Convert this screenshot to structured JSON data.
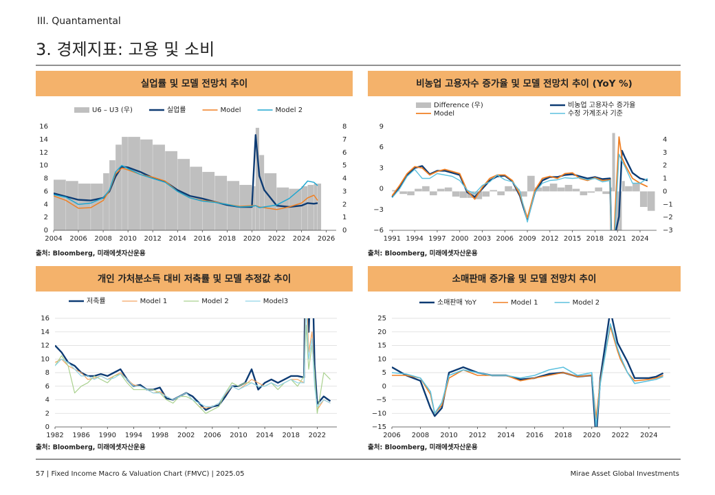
{
  "header": {
    "section": "III. Quantamental",
    "title": "3. 경제지표: 고용 및 소비"
  },
  "footer": {
    "left": "57 | Fixed Income Macro & Valuation Chart (FMVC) | 2025.05",
    "right": "Mirae Asset Global Investments"
  },
  "chart_data": [
    {
      "type": "line",
      "title": "실업률 및 모델 전망치 추이",
      "source": "출처: Bloomberg, 미래에셋자산운용",
      "x": [
        2004,
        2005,
        2006,
        2007,
        2008,
        2008.5,
        2009,
        2009.5,
        2010,
        2011,
        2012,
        2013,
        2014,
        2015,
        2016,
        2017,
        2018,
        2019,
        2020,
        2020.3,
        2020.6,
        2021,
        2022,
        2023,
        2024,
        2024.5,
        2025,
        2025.3
      ],
      "xlim": [
        2004,
        2026.8
      ],
      "xticks": [
        2004,
        2006,
        2008,
        2010,
        2012,
        2014,
        2016,
        2018,
        2020,
        2022,
        2024,
        2026
      ],
      "ylim": [
        0,
        16
      ],
      "yticks": [
        0,
        2,
        4,
        6,
        8,
        10,
        12,
        14,
        16
      ],
      "y2lim": [
        0,
        8
      ],
      "y2ticks": [
        0,
        1,
        2,
        3,
        4,
        5,
        6,
        7,
        8
      ],
      "grid": false,
      "series": [
        {
          "name": "U6 – U3 (우)",
          "type": "bar",
          "axis": "y2",
          "color": "#bfbfbf",
          "values": [
            3.9,
            3.8,
            3.6,
            3.6,
            4.4,
            5.4,
            6.6,
            7.2,
            7.2,
            7.0,
            6.6,
            6.1,
            5.5,
            4.9,
            4.5,
            4.2,
            3.8,
            3.5,
            3.4,
            7.9,
            5.8,
            4.4,
            3.3,
            3.2,
            3.4,
            3.5,
            3.6,
            3.6
          ]
        },
        {
          "name": "실업률",
          "type": "line",
          "color": "#0d3b73",
          "line_width": 2.4,
          "values": [
            5.7,
            5.2,
            4.7,
            4.6,
            5.0,
            6.0,
            8.3,
            9.8,
            9.7,
            9.0,
            8.1,
            7.5,
            6.2,
            5.3,
            4.9,
            4.4,
            3.9,
            3.6,
            3.6,
            14.7,
            8.4,
            6.2,
            3.8,
            3.6,
            3.8,
            4.2,
            4.1,
            4.2
          ]
        },
        {
          "name": "Model",
          "type": "line",
          "color": "#f07f22",
          "line_width": 1.5,
          "values": [
            5.3,
            4.6,
            3.4,
            3.5,
            4.6,
            6.1,
            8.7,
            9.6,
            9.3,
            8.6,
            8.2,
            7.6,
            6.0,
            5.0,
            4.6,
            4.4,
            4.0,
            3.7,
            3.8,
            3.8,
            3.6,
            3.5,
            3.2,
            3.6,
            4.2,
            5.0,
            5.4,
            4.6
          ]
        },
        {
          "name": "Model 2",
          "type": "line",
          "color": "#1ea6d0",
          "line_width": 1.5,
          "values": [
            5.5,
            5.1,
            4.0,
            4.2,
            5.0,
            6.2,
            9.0,
            10.0,
            9.5,
            8.6,
            8.0,
            7.4,
            6.0,
            5.0,
            4.5,
            4.3,
            4.0,
            3.6,
            3.7,
            3.8,
            3.5,
            3.6,
            3.9,
            4.9,
            6.5,
            7.6,
            7.4,
            6.9
          ]
        }
      ]
    },
    {
      "type": "line",
      "title": "비농업 고용자수 증가율 및 모델 전망치 추이 (YoY %)",
      "source": "출처: Bloomberg, 미래에셋자산운용",
      "x": [
        1991,
        1992,
        1993,
        1994,
        1995,
        1996,
        1997,
        1998,
        1999,
        2000,
        2001,
        2002,
        2003,
        2004,
        2005,
        2006,
        2007,
        2008,
        2009,
        2010,
        2011,
        2012,
        2013,
        2014,
        2015,
        2016,
        2017,
        2018,
        2019,
        2020,
        2020.3,
        2020.7,
        2021.2,
        2021.6,
        2022,
        2023,
        2024,
        2025
      ],
      "xlim": [
        1990.6,
        2026.2
      ],
      "xticks": [
        1991,
        1994,
        1997,
        2000,
        2003,
        2006,
        2009,
        2012,
        2015,
        2018,
        2021,
        2024
      ],
      "ylim": [
        -6,
        9
      ],
      "yticks": [
        {
          "value": -6,
          "label": "−6"
        },
        {
          "value": -3,
          "label": "−3"
        },
        0,
        3,
        6,
        9
      ],
      "y2lim": [
        -3,
        5
      ],
      "y2ticks": [
        {
          "value": -3,
          "label": "−3"
        },
        {
          "value": -2,
          "label": "−2"
        },
        {
          "value": -1,
          "label": "−1"
        },
        0,
        1,
        2,
        3,
        4
      ],
      "grid": false,
      "series": [
        {
          "name": "Difference (우)",
          "type": "bar",
          "axis": "y2",
          "color": "#bfbfbf",
          "values": [
            0.1,
            -0.2,
            -0.3,
            0.2,
            0.4,
            -0.3,
            0.2,
            0.3,
            -0.4,
            -0.5,
            -0.5,
            -0.6,
            -0.4,
            0.1,
            -0.3,
            0.4,
            0.2,
            -0.4,
            1.2,
            0.3,
            0.4,
            0.6,
            0.3,
            0.5,
            0.2,
            -0.3,
            -0.1,
            0.3,
            -0.2,
            0.3,
            4.5,
            -3,
            -3,
            0.8,
            0.4,
            0.6,
            -1.2,
            -1.5
          ]
        },
        {
          "name": "비농업 고용자수 증가율",
          "type": "line",
          "color": "#0d3b73",
          "line_width": 2.4,
          "values": [
            -1.2,
            0.3,
            2.0,
            3.0,
            3.3,
            2.1,
            2.6,
            2.6,
            2.3,
            2.0,
            -0.5,
            -1.2,
            0.0,
            1.2,
            1.8,
            1.9,
            1.1,
            -1.0,
            -4.5,
            -0.5,
            1.2,
            1.7,
            1.7,
            2.0,
            2.1,
            1.8,
            1.5,
            1.7,
            1.4,
            1.5,
            -13,
            -6.5,
            -4,
            5.5,
            4.5,
            2.3,
            1.5,
            1.2
          ]
        },
        {
          "name": "Model",
          "type": "line",
          "color": "#f07f22",
          "line_width": 1.8,
          "values": [
            -1.0,
            0.5,
            2.2,
            3.2,
            3.0,
            2.0,
            2.5,
            2.8,
            2.5,
            2.2,
            -0.3,
            -1.5,
            0.2,
            1.5,
            2.0,
            2.0,
            1.2,
            -0.8,
            -4.2,
            -0.2,
            1.5,
            1.8,
            1.5,
            2.2,
            2.3,
            1.5,
            1.2,
            1.6,
            1.2,
            1.3,
            -14,
            -3,
            7.5,
            4.5,
            3.5,
            1.5,
            0.8,
            0.3
          ]
        },
        {
          "name": "수정 가계조사 기준",
          "type": "line",
          "color": "#5bc0de",
          "line_width": 1.4,
          "values": [
            -1.3,
            0.0,
            1.8,
            2.8,
            1.5,
            1.5,
            2.2,
            2.0,
            1.8,
            1.2,
            -0.2,
            -0.7,
            0.5,
            1.0,
            2.0,
            1.3,
            1.0,
            -0.3,
            -4.8,
            -0.5,
            0.8,
            1.2,
            1.3,
            1.6,
            1.5,
            1.6,
            1.3,
            1.5,
            1.0,
            1.2,
            -13,
            -5,
            5,
            4.0,
            3.2,
            0.8,
            0.8,
            1.5
          ]
        }
      ]
    },
    {
      "type": "line",
      "title": "개인 가처분소득 대비 저축률 및 모델 추정값 추이",
      "source": "출처: Bloomberg, 미래에셋자산운용",
      "x": [
        1982,
        1983,
        1984,
        1985,
        1986,
        1987,
        1988,
        1989,
        1990,
        1991,
        1992,
        1993,
        1994,
        1995,
        1996,
        1997,
        1998,
        1999,
        2000,
        2001,
        2002,
        2003,
        2004,
        2005,
        2006,
        2007,
        2008,
        2009,
        2010,
        2011,
        2012,
        2013,
        2014,
        2015,
        2016,
        2017,
        2018,
        2019,
        2020,
        2020.3,
        2020.7,
        2021.2,
        2021.6,
        2022,
        2023,
        2024
      ],
      "xlim": [
        1982,
        2025
      ],
      "xticks": [
        1982,
        1986,
        1990,
        1994,
        1998,
        2002,
        2006,
        2010,
        2014,
        2018,
        2022
      ],
      "ylim": [
        0,
        16
      ],
      "yticks": [
        0,
        2,
        4,
        6,
        8,
        10,
        12,
        14,
        16
      ],
      "grid": true,
      "series": [
        {
          "name": "저축률",
          "type": "line",
          "color": "#0d3b73",
          "line_width": 2.4,
          "values": [
            12.0,
            11.0,
            9.5,
            9.0,
            8.0,
            7.5,
            7.5,
            7.8,
            7.5,
            8.0,
            8.5,
            7.0,
            6.0,
            6.2,
            5.5,
            5.5,
            5.8,
            4.2,
            4.0,
            4.5,
            5.0,
            4.5,
            3.5,
            2.5,
            3.0,
            3.2,
            4.5,
            6.0,
            6.0,
            6.5,
            8.5,
            5.5,
            6.5,
            7.0,
            6.5,
            7.0,
            7.5,
            7.5,
            7.3,
            32.0,
            14.0,
            26.0,
            9.0,
            3.4,
            4.5,
            3.8
          ]
        },
        {
          "name": "Model 1",
          "type": "line",
          "color": "#f4a460",
          "line_width": 1.2,
          "values": [
            9.5,
            10.0,
            9.0,
            8.5,
            8.0,
            7.0,
            7.2,
            7.5,
            7.0,
            7.5,
            8.0,
            7.0,
            6.2,
            6.0,
            5.5,
            5.0,
            5.2,
            4.5,
            4.0,
            4.5,
            5.0,
            4.0,
            3.0,
            2.8,
            3.0,
            3.5,
            4.8,
            6.0,
            5.5,
            6.2,
            7.0,
            6.5,
            6.0,
            6.5,
            6.0,
            6.5,
            7.0,
            7.0,
            6.5,
            22.0,
            11.0,
            14.0,
            7.0,
            2.5,
            4.0,
            3.5
          ]
        },
        {
          "name": "Model 2",
          "type": "line",
          "color": "#a9d18e",
          "line_width": 1.2,
          "values": [
            9.0,
            10.5,
            9.0,
            5.0,
            6.0,
            6.5,
            7.5,
            7.0,
            6.5,
            7.5,
            7.8,
            6.5,
            5.5,
            5.5,
            5.5,
            5.5,
            5.0,
            4.0,
            3.5,
            4.5,
            4.5,
            4.0,
            3.0,
            2.0,
            2.5,
            3.0,
            5.0,
            6.5,
            6.0,
            6.5,
            6.5,
            6.0,
            6.0,
            6.5,
            5.5,
            6.5,
            7.0,
            6.0,
            7.5,
            15.0,
            8.5,
            12.0,
            8.0,
            2.0,
            8.0,
            7.0
          ]
        },
        {
          "name": "Model3",
          "type": "line",
          "color": "#8fd3e8",
          "line_width": 1.2,
          "values": [
            9.0,
            10.0,
            9.5,
            8.5,
            7.5,
            7.5,
            7.0,
            7.5,
            7.0,
            7.2,
            7.8,
            7.0,
            6.0,
            6.0,
            5.5,
            5.0,
            5.0,
            4.5,
            4.0,
            4.5,
            5.0,
            4.0,
            3.5,
            3.0,
            3.0,
            3.5,
            5.0,
            6.0,
            5.5,
            6.0,
            6.5,
            6.0,
            6.0,
            6.5,
            6.0,
            6.5,
            7.0,
            6.5,
            6.5,
            18.0,
            10.0,
            13.0,
            6.0,
            3.0,
            4.0,
            3.5
          ]
        }
      ]
    },
    {
      "type": "line",
      "title": "소매판매 증가율 및 모델 전망치 추이",
      "source": "출처: Bloomberg, 미래에셋자산운용",
      "x": [
        2006,
        2007,
        2008,
        2008.7,
        2009,
        2009.5,
        2010,
        2011,
        2012,
        2013,
        2014,
        2015,
        2016,
        2017,
        2018,
        2019,
        2020,
        2020.3,
        2020.6,
        2021.3,
        2021.8,
        2022,
        2022.5,
        2023,
        2024,
        2024.5,
        2025
      ],
      "xlim": [
        2006,
        2025.5
      ],
      "xticks": [
        2006,
        2008,
        2010,
        2012,
        2014,
        2016,
        2018,
        2020,
        2022,
        2024
      ],
      "ylim": [
        -15,
        25
      ],
      "yticks": [
        {
          "value": -15,
          "label": "−15"
        },
        {
          "value": -10,
          "label": "−10"
        },
        {
          "value": -5,
          "label": "−5"
        },
        0,
        5,
        10,
        15,
        20,
        25
      ],
      "grid": true,
      "series": [
        {
          "name": "소매판매 YoY",
          "type": "line",
          "color": "#0d3b73",
          "line_width": 2.4,
          "values": [
            7,
            4,
            2,
            -8,
            -11,
            -8,
            5,
            7,
            5,
            4,
            4,
            2.5,
            3,
            4.5,
            5,
            3.5,
            4,
            -19,
            3,
            28,
            16,
            14,
            9,
            3,
            3,
            3.5,
            4.8
          ]
        },
        {
          "name": "Model 1",
          "type": "line",
          "color": "#f07f22",
          "line_width": 1.6,
          "values": [
            4,
            4,
            3,
            -3,
            -10,
            -7,
            3,
            6,
            4,
            4,
            4,
            2,
            3,
            4,
            5,
            3.5,
            4,
            -12,
            2,
            22,
            13,
            10,
            5,
            2,
            2.5,
            3,
            4
          ]
        },
        {
          "name": "Model 2",
          "type": "line",
          "color": "#5bc0de",
          "line_width": 1.6,
          "values": [
            5,
            4.5,
            3,
            -2,
            -10,
            -6,
            4,
            6,
            5,
            4,
            4,
            3,
            4,
            6,
            7,
            4,
            5,
            -15,
            1,
            23,
            14,
            11,
            5,
            1,
            2,
            2.5,
            3.5
          ]
        }
      ]
    }
  ]
}
